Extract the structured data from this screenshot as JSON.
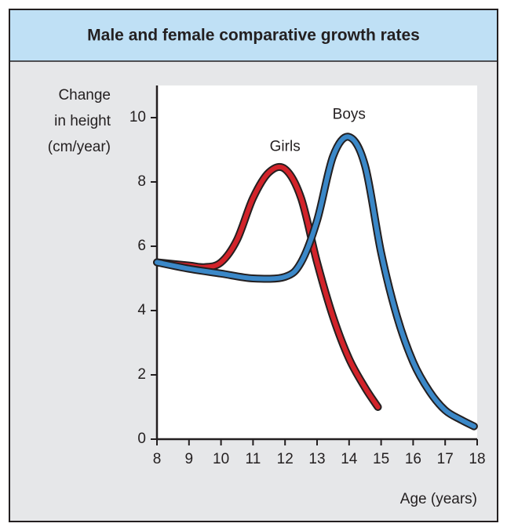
{
  "chart_data": {
    "type": "line",
    "title": "Male and female comparative growth rates",
    "ylabel": [
      "Change",
      "in height",
      "(cm/year)"
    ],
    "xlabel": "Age (years)",
    "xlim": [
      8,
      18
    ],
    "xticks": [
      8,
      9,
      10,
      11,
      12,
      13,
      14,
      15,
      16,
      17,
      18
    ],
    "ylim": [
      0,
      11
    ],
    "yticks": [
      0,
      2,
      4,
      6,
      8,
      10
    ],
    "grid": false,
    "series": [
      {
        "name": "Girls",
        "color": "#d2232a",
        "x": [
          8,
          9,
          9.5,
          10,
          10.5,
          11,
          11.5,
          12,
          12.5,
          13,
          13.5,
          14,
          14.5,
          14.9
        ],
        "values": [
          5.5,
          5.4,
          5.35,
          5.5,
          6.2,
          7.5,
          8.3,
          8.4,
          7.5,
          5.5,
          3.8,
          2.5,
          1.6,
          1.0
        ]
      },
      {
        "name": "Boys",
        "color": "#3b88c8",
        "x": [
          8,
          9,
          10,
          11,
          12,
          12.5,
          13,
          13.5,
          14,
          14.5,
          15,
          15.5,
          16,
          16.5,
          17,
          17.5,
          17.9
        ],
        "values": [
          5.5,
          5.3,
          5.15,
          5.0,
          5.05,
          5.5,
          6.8,
          8.8,
          9.4,
          8.5,
          5.8,
          3.8,
          2.4,
          1.5,
          0.9,
          0.6,
          0.4
        ]
      }
    ]
  }
}
